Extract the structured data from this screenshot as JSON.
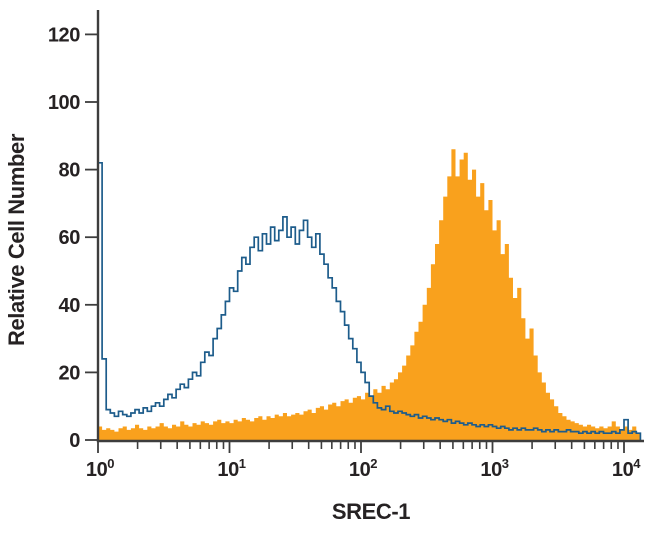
{
  "figure": {
    "xlabel": "SREC-1",
    "ylabel": "Relative Cell Number"
  },
  "colors": {
    "background": "#ffffff",
    "axis": "#3d3d3d",
    "text": "#262223",
    "open_histogram_line": "#1d5c8b",
    "filled_histogram_fill": "#f9a11d"
  },
  "chart_data": {
    "type": "histogram",
    "subtype": "flow-cytometry-overlay",
    "title": "",
    "xlabel": "SREC-1",
    "ylabel": "Relative Cell Number",
    "x_scale": "log10",
    "x_range_decades": [
      0,
      4.125
    ],
    "x_tick_base": "10",
    "x_tick_exponents": [
      "0",
      "1",
      "2",
      "3",
      "4"
    ],
    "x_minor_ticks_per_decade": [
      2,
      3,
      4,
      5,
      6,
      7,
      8,
      9
    ],
    "y_ticks": [
      0,
      20,
      40,
      60,
      80,
      100,
      120
    ],
    "ylim": [
      0,
      126
    ],
    "grid": false,
    "legend_position": "none",
    "bin_width_decades": 0.03125,
    "series": [
      {
        "name": "filled-histogram-stained",
        "style": "filled",
        "color": "#f9a11d",
        "values": [
          4,
          3,
          3.5,
          3,
          2.5,
          3.5,
          4,
          3,
          3.5,
          4.5,
          3.5,
          3,
          4,
          3.5,
          4,
          5,
          4,
          3.5,
          4.5,
          4,
          5.5,
          4.5,
          4,
          5,
          4.5,
          5.5,
          5,
          4.5,
          5.5,
          6,
          5,
          5.5,
          5,
          6,
          5.5,
          6.5,
          6,
          5.5,
          6.5,
          7,
          6,
          7,
          6.5,
          7.5,
          7,
          8,
          7,
          7.5,
          8,
          7.5,
          8.5,
          9,
          8,
          9.5,
          10,
          9,
          10.5,
          11,
          10,
          11.5,
          12,
          11,
          12.5,
          13,
          12,
          14,
          13,
          15,
          14,
          16,
          15,
          17,
          18,
          20,
          22,
          25,
          28,
          32,
          35,
          40,
          45,
          52,
          58,
          65,
          72,
          78,
          86,
          78,
          83,
          85,
          77,
          80,
          72,
          76,
          68,
          71,
          62,
          65,
          55,
          58,
          48,
          42,
          45,
          36,
          30,
          33,
          25,
          20,
          17,
          14,
          12,
          10,
          8,
          7,
          6,
          5.5,
          5,
          4.5,
          4,
          4.5,
          4,
          3.5,
          4,
          3.5,
          4,
          5.5,
          4,
          3,
          4,
          3,
          4,
          2
        ]
      },
      {
        "name": "open-histogram-control",
        "style": "open",
        "color": "#1d5c8b",
        "values": [
          82,
          24,
          9,
          8,
          7,
          8.5,
          7.5,
          7,
          8,
          9,
          8,
          9.5,
          8.5,
          10,
          11,
          10,
          12,
          13.5,
          12.5,
          15,
          16.5,
          15.5,
          18,
          20,
          19,
          23,
          26,
          25,
          30,
          33,
          37,
          41,
          45,
          44,
          50,
          54,
          52,
          57,
          60,
          56,
          61,
          58,
          63,
          59,
          62,
          66,
          60,
          63,
          58,
          62,
          65,
          60,
          57,
          61,
          55,
          52,
          48,
          45,
          41,
          38,
          34,
          30,
          27,
          23,
          20,
          17,
          13,
          11,
          9.5,
          9,
          10,
          8.5,
          8,
          8.5,
          8,
          7.5,
          7,
          7.5,
          6.5,
          7,
          6.5,
          6,
          6.5,
          6,
          5.5,
          6,
          5,
          5.5,
          5,
          4.5,
          5,
          4.5,
          4,
          4.5,
          4,
          4.5,
          4,
          3.5,
          4,
          3.5,
          3,
          3.5,
          3,
          3.5,
          3,
          3,
          3.5,
          3,
          2.5,
          3,
          2.5,
          3,
          2.5,
          2.5,
          3,
          2.5,
          2.5,
          2,
          2.5,
          2,
          2.5,
          2,
          2.5,
          2,
          2,
          2.5,
          2,
          3,
          6,
          2,
          2.5,
          2
        ]
      }
    ]
  }
}
